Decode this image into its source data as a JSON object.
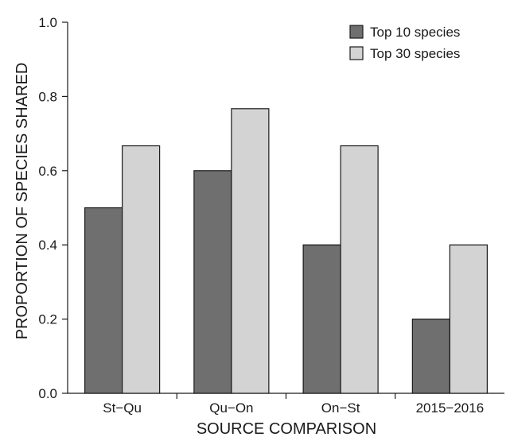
{
  "chart_data": {
    "type": "bar",
    "title": "",
    "xlabel": "SOURCE COMPARISON",
    "ylabel": "PROPORTION OF SPECIES SHARED",
    "categories": [
      "St−Qu",
      "Qu−On",
      "On−St",
      "2015−2016"
    ],
    "series": [
      {
        "name": "Top 10 species",
        "values": [
          0.5,
          0.6,
          0.4,
          0.2
        ],
        "color": "#6f6f6f"
      },
      {
        "name": "Top 30 species",
        "values": [
          0.667,
          0.767,
          0.667,
          0.4
        ],
        "color": "#d3d3d3"
      }
    ],
    "ylim": [
      0.0,
      1.0
    ],
    "yticks": [
      "0.0",
      "0.2",
      "0.4",
      "0.6",
      "0.8",
      "1.0"
    ],
    "grid": false,
    "legend_position": "top-right"
  }
}
